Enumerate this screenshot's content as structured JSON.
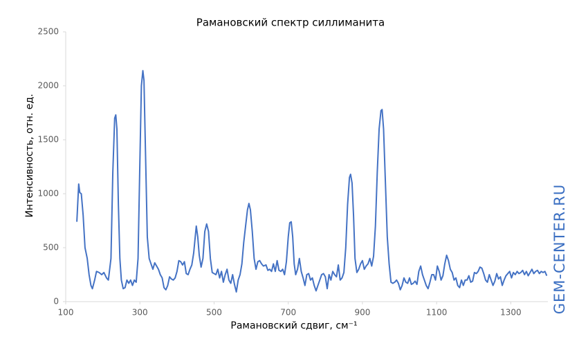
{
  "chart_data": {
    "type": "line",
    "title": "Рамановский спектр силлиманита",
    "x_label": "Рамановский сдвиг, см⁻¹",
    "y_label": "Интенсивность, отн. ед.",
    "watermark": "GEM-CENTER.RU",
    "color": "#4472c4",
    "xlim": [
      100,
      1400
    ],
    "ylim": [
      0,
      2500
    ],
    "xticks": [
      100,
      300,
      500,
      700,
      900,
      1100,
      1300
    ],
    "yticks": [
      0,
      500,
      1000,
      1500,
      2000,
      2500
    ],
    "grid": false,
    "x": [
      130,
      135,
      138,
      142,
      147,
      152,
      158,
      163,
      168,
      172,
      178,
      183,
      190,
      197,
      203,
      210,
      215,
      222,
      227,
      232,
      235,
      238,
      242,
      246,
      250,
      255,
      260,
      265,
      270,
      275,
      280,
      285,
      290,
      295,
      300,
      304,
      308,
      311,
      315,
      320,
      325,
      330,
      335,
      340,
      345,
      350,
      355,
      360,
      365,
      370,
      375,
      380,
      385,
      390,
      395,
      400,
      405,
      410,
      415,
      420,
      425,
      430,
      435,
      440,
      445,
      452,
      456,
      460,
      465,
      470,
      475,
      480,
      485,
      490,
      495,
      500,
      505,
      510,
      515,
      520,
      525,
      530,
      535,
      540,
      545,
      550,
      555,
      560,
      565,
      570,
      575,
      580,
      585,
      590,
      594,
      598,
      603,
      608,
      613,
      618,
      623,
      628,
      633,
      640,
      645,
      650,
      655,
      660,
      665,
      670,
      675,
      680,
      685,
      690,
      695,
      700,
      704,
      708,
      712,
      716,
      720,
      725,
      730,
      735,
      740,
      745,
      750,
      755,
      760,
      765,
      770,
      775,
      780,
      785,
      790,
      795,
      800,
      805,
      810,
      815,
      820,
      825,
      830,
      835,
      840,
      845,
      850,
      855,
      860,
      865,
      868,
      872,
      876,
      880,
      885,
      890,
      895,
      900,
      905,
      910,
      915,
      920,
      925,
      930,
      935,
      940,
      945,
      950,
      953,
      957,
      962,
      967,
      972,
      977,
      982,
      987,
      992,
      997,
      1002,
      1007,
      1012,
      1017,
      1022,
      1027,
      1032,
      1037,
      1042,
      1047,
      1052,
      1057,
      1062,
      1067,
      1072,
      1077,
      1082,
      1087,
      1092,
      1097,
      1102,
      1107,
      1112,
      1117,
      1122,
      1127,
      1132,
      1137,
      1142,
      1147,
      1152,
      1157,
      1162,
      1167,
      1172,
      1177,
      1182,
      1187,
      1192,
      1197,
      1202,
      1207,
      1212,
      1217,
      1222,
      1227,
      1232,
      1237,
      1242,
      1247,
      1252,
      1257,
      1262,
      1267,
      1272,
      1277,
      1282,
      1287,
      1292,
      1297,
      1302,
      1307,
      1312,
      1317,
      1322,
      1327,
      1332,
      1337,
      1342,
      1347,
      1352,
      1357,
      1362,
      1367,
      1372,
      1377,
      1382,
      1387,
      1392,
      1397
    ],
    "values": [
      740,
      1090,
      1010,
      1000,
      800,
      500,
      400,
      250,
      150,
      120,
      200,
      280,
      270,
      250,
      270,
      220,
      200,
      400,
      1200,
      1700,
      1730,
      1600,
      900,
      400,
      200,
      120,
      130,
      200,
      170,
      200,
      150,
      200,
      180,
      400,
      1300,
      2000,
      2140,
      2050,
      1400,
      600,
      400,
      350,
      300,
      360,
      330,
      300,
      250,
      220,
      130,
      110,
      150,
      230,
      210,
      200,
      220,
      280,
      380,
      370,
      340,
      370,
      260,
      250,
      300,
      340,
      450,
      700,
      600,
      430,
      320,
      400,
      650,
      720,
      650,
      400,
      270,
      260,
      250,
      300,
      220,
      280,
      180,
      250,
      300,
      200,
      170,
      250,
      160,
      90,
      200,
      250,
      350,
      550,
      700,
      850,
      910,
      850,
      650,
      400,
      300,
      370,
      380,
      350,
      330,
      340,
      290,
      300,
      280,
      350,
      280,
      380,
      290,
      280,
      300,
      250,
      370,
      600,
      730,
      740,
      600,
      350,
      250,
      300,
      400,
      280,
      220,
      150,
      250,
      260,
      200,
      220,
      150,
      100,
      150,
      200,
      250,
      260,
      230,
      120,
      250,
      200,
      280,
      250,
      230,
      340,
      200,
      220,
      270,
      500,
      900,
      1150,
      1180,
      1100,
      800,
      400,
      270,
      300,
      350,
      380,
      300,
      330,
      350,
      400,
      330,
      420,
      700,
      1200,
      1600,
      1770,
      1780,
      1600,
      1100,
      600,
      350,
      180,
      170,
      180,
      200,
      170,
      110,
      150,
      220,
      180,
      170,
      220,
      160,
      170,
      190,
      160,
      280,
      330,
      250,
      200,
      150,
      120,
      180,
      250,
      250,
      200,
      330,
      280,
      200,
      240,
      350,
      430,
      380,
      300,
      270,
      200,
      220,
      150,
      130,
      200,
      150,
      200,
      200,
      240,
      180,
      190,
      270,
      260,
      280,
      320,
      310,
      260,
      200,
      180,
      250,
      200,
      150,
      190,
      260,
      210,
      230,
      150,
      200,
      240,
      260,
      280,
      220,
      270,
      250,
      280,
      260,
      270,
      290,
      250,
      280,
      240,
      270,
      300,
      260,
      280,
      290,
      260,
      280,
      270,
      280,
      240
    ]
  }
}
